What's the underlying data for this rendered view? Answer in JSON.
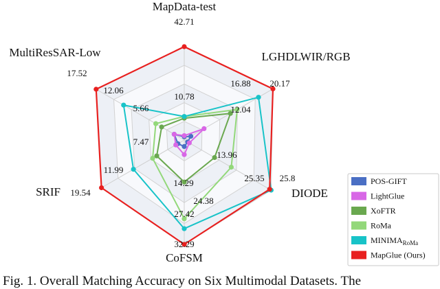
{
  "chart_data": {
    "type": "radar",
    "axes": [
      "MapData-test",
      "LGHDLWIR/RGB",
      "DIODE",
      "CoFSM",
      "SRIF",
      "MultiResSAR-Low"
    ],
    "series": [
      {
        "name": "POS-GIFT",
        "color": "#4a6fc4",
        "values": [
          1.5,
          1.5,
          1.0,
          2.0,
          1.5,
          2.0
        ]
      },
      {
        "name": "LightGlue",
        "color": "#d867e6",
        "values": [
          2.0,
          4.5,
          1.5,
          4.5,
          2.0,
          2.0
        ]
      },
      {
        "name": "XoFTR",
        "color": "#6aa84f",
        "values": [
          10.0,
          10.5,
          9.0,
          13.0,
          6.5,
          4.5
        ]
      },
      {
        "name": "RoMa",
        "color": "#93d87a",
        "values": [
          10.78,
          12.04,
          13.96,
          24.38,
          7.47,
          5.66
        ]
      },
      {
        "name": "MINIMA",
        "name_sub": "RoMa",
        "color": "#18c3c8",
        "values": [
          10.78,
          16.88,
          25.8,
          27.42,
          11.99,
          12.06
        ]
      },
      {
        "name": "MapGlue (Ours)",
        "color": "#e8201f",
        "values": [
          42.71,
          20.17,
          25.35,
          32.29,
          19.54,
          17.52
        ]
      }
    ],
    "value_labels": [
      "42.71",
      "10.78",
      "20.17",
      "16.88",
      "12.04",
      "25.8",
      "25.35",
      "13.96",
      "32.29",
      "27.42",
      "24.38",
      "14.29",
      "19.54",
      "11.99",
      "7.47",
      "17.52",
      "12.06",
      "5.66"
    ],
    "grid": true,
    "legend_position": "bottom-right"
  },
  "caption": "Fig. 1. Overall Matching Accuracy on Six Multimodal Datasets. The"
}
